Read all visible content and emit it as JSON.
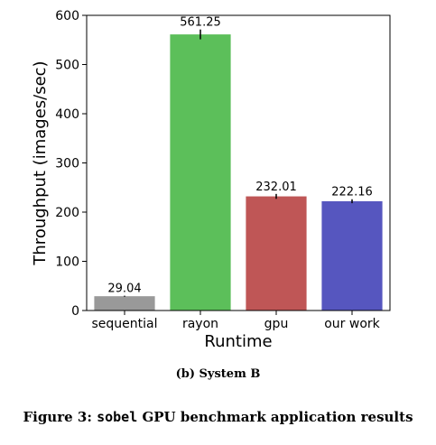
{
  "chart_data": {
    "type": "bar",
    "categories": [
      "sequential",
      "rayon",
      "gpu",
      "our work"
    ],
    "values": [
      29.04,
      561.25,
      232.01,
      222.16
    ],
    "value_labels": [
      "29.04",
      "561.25",
      "232.01",
      "222.16"
    ],
    "error": [
      1,
      10,
      5,
      4
    ],
    "colors": [
      "#999999",
      "#5cbf5a",
      "#bf5656",
      "#5656bf"
    ],
    "xlabel": "Runtime",
    "ylabel": "Throughput (images/sec)",
    "ylim": [
      0,
      600
    ],
    "yticks": [
      0,
      100,
      200,
      300,
      400,
      500,
      600
    ],
    "grid": false,
    "legend": "none"
  },
  "captions": {
    "sub": "(b) System B",
    "figure_prefix": "Figure 3: ",
    "figure_code": "sobel",
    "figure_suffix": " GPU benchmark application results"
  }
}
